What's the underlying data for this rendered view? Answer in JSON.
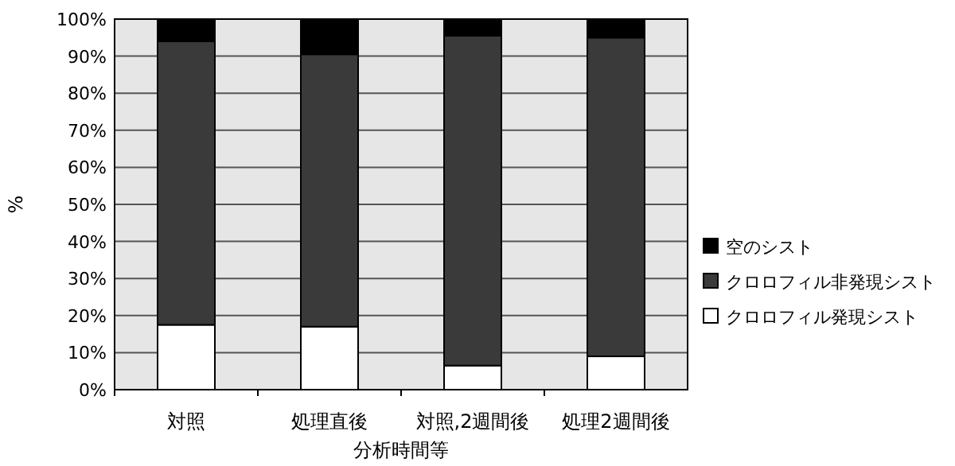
{
  "chart_data": {
    "type": "bar",
    "stacked": true,
    "xlabel": "分析時間等",
    "ylabel": "%",
    "categories": [
      "対照",
      "処理直後",
      "対照,2週間後",
      "処理2週間後"
    ],
    "series": [
      {
        "name": "クロロフィル発現シスト",
        "color": "#ffffff",
        "values": [
          17.5,
          17,
          6.5,
          9
        ]
      },
      {
        "name": "クロロフィル非発現シスト",
        "color": "#3a3a3a",
        "values": [
          76.5,
          73.5,
          89,
          86
        ]
      },
      {
        "name": "空のシスト",
        "color": "#000000",
        "values": [
          6,
          9.5,
          4.5,
          5
        ]
      }
    ],
    "ylim": [
      0,
      100
    ],
    "yticks": [
      {
        "value": 0,
        "label": "0%"
      },
      {
        "value": 10,
        "label": "10%"
      },
      {
        "value": 20,
        "label": "20%"
      },
      {
        "value": 30,
        "label": "30%"
      },
      {
        "value": 40,
        "label": "40%"
      },
      {
        "value": 50,
        "label": "50%"
      },
      {
        "value": 60,
        "label": "60%"
      },
      {
        "value": 70,
        "label": "70%"
      },
      {
        "value": 80,
        "label": "80%"
      },
      {
        "value": 90,
        "label": "90%"
      },
      {
        "value": 100,
        "label": "100%"
      }
    ],
    "grid": "y",
    "legend": "right"
  }
}
